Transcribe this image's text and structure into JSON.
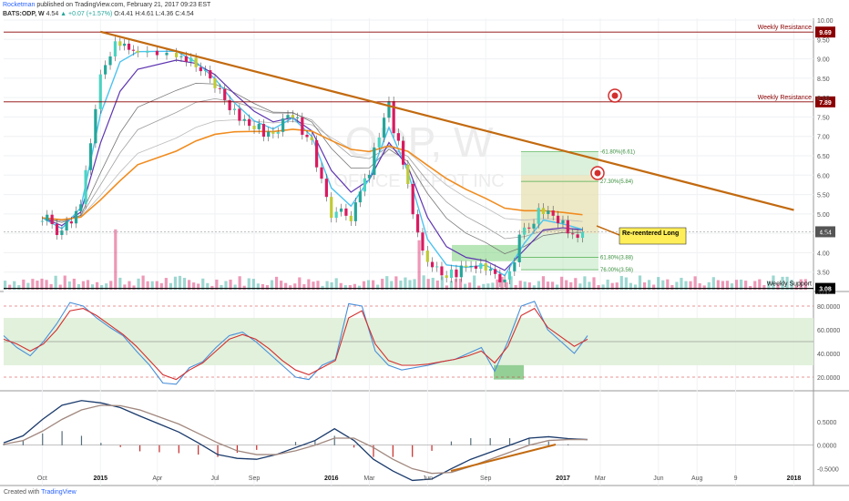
{
  "header": {
    "author": "Rocketman",
    "published": "published on TradingView.com, February 21, 2017 09:23 EST",
    "symbol": "BATS:ODP, W",
    "last": "4.54",
    "change": "▲ +0.07 (+1.57%)",
    "ohlc": "O:4.41 H:4.61 L:4.36 C:4.54"
  },
  "footer": {
    "created_with": "Created with",
    "brand": "TradingView"
  },
  "colors": {
    "up": "#26a69a",
    "down": "#d81b60",
    "trend": "#c26a10",
    "ema_fast": "#4cc3f0",
    "ema_mid": "#5e35b1",
    "ema_slow": "#f08c1f",
    "resistance": "#8b0000",
    "support": "#111111",
    "box": "#b7e4b7",
    "tag": "#ffee58",
    "stoch_zone": "#dff0d8"
  },
  "chart_data": [
    {
      "type": "candlestick",
      "title": "",
      "watermark": "ODP, W",
      "watermark_sub": "OFFICE DEPOT INC",
      "x_ticks": [
        "Oct",
        "2015",
        "Apr",
        "Jul",
        "Sep",
        "2016",
        "Mar",
        "Jun",
        "Sep",
        "2017",
        "Mar",
        "Jun",
        "Aug",
        "9",
        "2018"
      ],
      "ylim": [
        3.0,
        10.0
      ],
      "y_ticks": [
        "10.00",
        "9.50",
        "9.00",
        "8.50",
        "8.00",
        "7.50",
        "7.00",
        "6.50",
        "6.00",
        "5.50",
        "5.00",
        "4.50",
        "4.00",
        "3.50",
        "3.00"
      ],
      "price_path": [
        {
          "date": "2014-10",
          "price": 4.9
        },
        {
          "date": "2014-11",
          "price": 4.5
        },
        {
          "date": "2014-12",
          "price": 5.4
        },
        {
          "date": "2015-01",
          "price": 8.6
        },
        {
          "date": "2015-02",
          "price": 9.5
        },
        {
          "date": "2015-03",
          "price": 9.3
        },
        {
          "date": "2015-05",
          "price": 9.2
        },
        {
          "date": "2015-06",
          "price": 8.8
        },
        {
          "date": "2015-07",
          "price": 8.3
        },
        {
          "date": "2015-08",
          "price": 7.6
        },
        {
          "date": "2015-09",
          "price": 7.2
        },
        {
          "date": "2015-10",
          "price": 7.1
        },
        {
          "date": "2015-11",
          "price": 7.6
        },
        {
          "date": "2015-12",
          "price": 6.8
        },
        {
          "date": "2016-01",
          "price": 5.1
        },
        {
          "date": "2016-02",
          "price": 5.0
        },
        {
          "date": "2016-03",
          "price": 6.2
        },
        {
          "date": "2016-04",
          "price": 7.8
        },
        {
          "date": "2016-05",
          "price": 5.6
        },
        {
          "date": "2016-06",
          "price": 3.6
        },
        {
          "date": "2016-07",
          "price": 3.4
        },
        {
          "date": "2016-08",
          "price": 3.6
        },
        {
          "date": "2016-09",
          "price": 3.7
        },
        {
          "date": "2016-10",
          "price": 3.3
        },
        {
          "date": "2016-11",
          "price": 4.6
        },
        {
          "date": "2016-12",
          "price": 5.1
        },
        {
          "date": "2017-01",
          "price": 4.7
        },
        {
          "date": "2017-02",
          "price": 4.54
        }
      ],
      "lines": [
        {
          "label": "Weekly Resistance",
          "value": 9.69,
          "badge": "9.69"
        },
        {
          "label": "Weekly Resistance",
          "value": 7.89,
          "badge": "7.89"
        },
        {
          "label": "Weekly Support",
          "value": 3.08,
          "badge": "3.08"
        }
      ],
      "last_price_badge": "4.54",
      "trendline": [
        {
          "date": "2015-01",
          "price": 9.7
        },
        {
          "date": "2018-01",
          "price": 5.1
        }
      ],
      "fib_levels": [
        {
          "label": "-61.80%(6.61)",
          "value": 6.61
        },
        {
          "label": "27.30%(5.84)",
          "value": 5.84
        },
        {
          "label": "61.80%(3.88)",
          "value": 3.88
        },
        {
          "label": "76.00%(3.56)",
          "value": 3.56
        }
      ],
      "annotation": "Re-reentered Long"
    },
    {
      "type": "line",
      "title": "",
      "name": "stochastic",
      "ylim": [
        10,
        90
      ],
      "y_ticks": [
        "80.0000",
        "60.0000",
        "40.0000",
        "20.0000"
      ],
      "band": [
        30,
        70
      ],
      "series": [
        {
          "color": "#4a90d9",
          "values": [
            55,
            45,
            38,
            50,
            65,
            83,
            80,
            70,
            62,
            55,
            42,
            30,
            15,
            14,
            28,
            33,
            45,
            55,
            58,
            50,
            40,
            30,
            20,
            18,
            30,
            35,
            82,
            80,
            42,
            30,
            26,
            28,
            30,
            33,
            35,
            40,
            45,
            25,
            50,
            80,
            84,
            60,
            50,
            40,
            55
          ]
        },
        {
          "color": "#d32f2f",
          "values": [
            52,
            48,
            42,
            48,
            60,
            76,
            78,
            72,
            64,
            56,
            46,
            34,
            22,
            18,
            26,
            32,
            42,
            52,
            56,
            52,
            44,
            34,
            26,
            22,
            28,
            34,
            70,
            76,
            48,
            34,
            30,
            30,
            31,
            33,
            35,
            38,
            42,
            32,
            46,
            72,
            78,
            62,
            54,
            46,
            52
          ]
        }
      ]
    },
    {
      "type": "bar",
      "title": "",
      "name": "macd",
      "ylim": [
        -0.8,
        1.1
      ],
      "y_ticks": [
        "0.5000",
        "0.0000",
        "-0.5000"
      ],
      "macd_line": [
        0.05,
        0.2,
        0.55,
        0.85,
        0.95,
        0.9,
        0.8,
        0.62,
        0.45,
        0.28,
        0.05,
        -0.2,
        -0.28,
        -0.3,
        -0.2,
        -0.05,
        0.1,
        0.35,
        0.1,
        -0.3,
        -0.55,
        -0.75,
        -0.72,
        -0.5,
        -0.3,
        -0.15,
        0.0,
        0.15,
        0.18,
        0.14,
        0.12
      ],
      "signal_line": [
        0.02,
        0.1,
        0.3,
        0.55,
        0.75,
        0.85,
        0.84,
        0.75,
        0.6,
        0.45,
        0.25,
        0.05,
        -0.12,
        -0.2,
        -0.2,
        -0.12,
        0.0,
        0.15,
        0.15,
        -0.05,
        -0.3,
        -0.5,
        -0.6,
        -0.58,
        -0.45,
        -0.3,
        -0.15,
        0.0,
        0.1,
        0.12,
        0.12
      ],
      "histogram": [
        0.03,
        0.1,
        0.25,
        0.3,
        0.2,
        0.05,
        -0.04,
        -0.13,
        -0.15,
        -0.17,
        -0.2,
        -0.25,
        -0.16,
        -0.1,
        0.0,
        0.07,
        0.1,
        0.2,
        -0.05,
        -0.25,
        -0.25,
        -0.25,
        -0.12,
        0.08,
        0.15,
        0.15,
        0.15,
        0.15,
        0.08,
        0.02,
        0.0
      ]
    }
  ]
}
